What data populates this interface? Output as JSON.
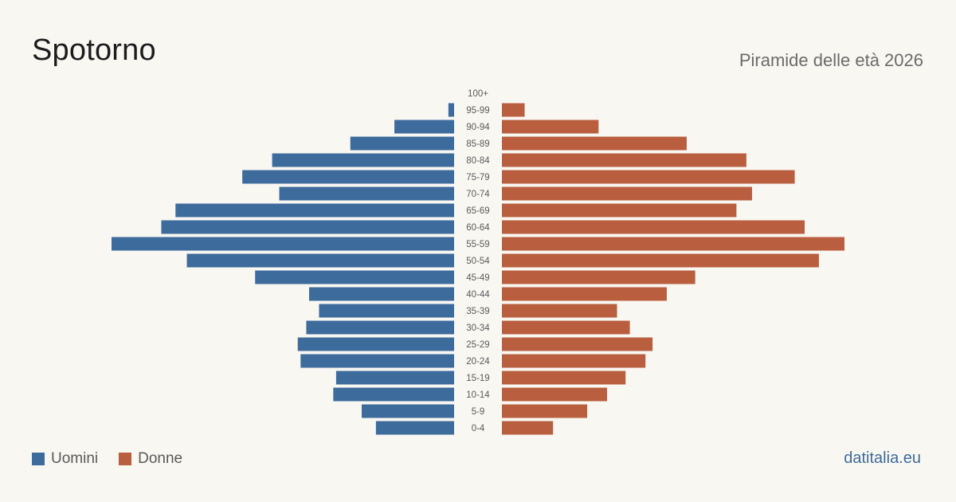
{
  "header": {
    "title": "Spotorno",
    "subtitle": "Piramide delle età 2026"
  },
  "legend": {
    "men_label": "Uomini",
    "women_label": "Donne"
  },
  "source": {
    "label": "datitalia.eu"
  },
  "colors": {
    "men": "#3d6b9c",
    "women": "#b95f3f",
    "source": "#3d6b9c",
    "age_label": "#5a5a5a"
  },
  "chart_data": {
    "type": "bar",
    "orientation": "horizontal",
    "layout": "population-pyramid",
    "categories": [
      "100+",
      "95-99",
      "90-94",
      "85-89",
      "80-84",
      "75-79",
      "70-74",
      "65-69",
      "60-64",
      "55-59",
      "50-54",
      "45-49",
      "40-44",
      "35-39",
      "30-34",
      "25-29",
      "20-24",
      "15-19",
      "10-14",
      "5-9",
      "0-4"
    ],
    "series": [
      {
        "name": "Uomini",
        "side": "left",
        "values": [
          0,
          4,
          42,
          73,
          128,
          149,
          123,
          196,
          206,
          241,
          188,
          140,
          102,
          95,
          104,
          110,
          108,
          83,
          85,
          65,
          55
        ]
      },
      {
        "name": "Donne",
        "side": "right",
        "values": [
          0,
          16,
          68,
          130,
          172,
          206,
          176,
          165,
          213,
          241,
          223,
          136,
          116,
          81,
          90,
          106,
          101,
          87,
          74,
          60,
          36
        ]
      }
    ],
    "xlim": [
      0,
      241
    ],
    "grid": false,
    "legend_position": "bottom-left"
  }
}
